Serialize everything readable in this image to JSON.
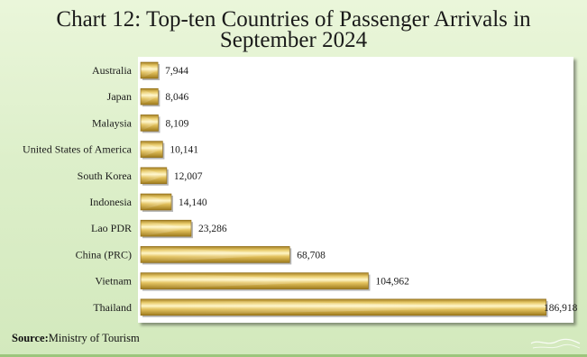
{
  "title": {
    "line1": "Chart 12: Top-ten Countries of Passenger Arrivals in",
    "line2": "September 2024"
  },
  "source": {
    "label": "Source:",
    "text": "Ministry  of Tourism"
  },
  "colors": {
    "bar_highlight": "#fff6c6",
    "bar_light": "#e9cc6c",
    "bar_dark": "#9e7a1c",
    "background": "#dcefca",
    "plot_background": "#ffffff"
  },
  "chart_data": {
    "type": "bar",
    "orientation": "horizontal",
    "title": "Chart 12: Top-ten Countries of Passenger Arrivals in September 2024",
    "xlabel": "",
    "ylabel": "",
    "grid": false,
    "legend": "none",
    "categories": [
      "Australia",
      "Japan",
      "Malaysia",
      "United States of America",
      "South Korea",
      "Indonesia",
      "Lao PDR",
      "China (PRC)",
      "Vietnam",
      "Thailand"
    ],
    "values": [
      7944,
      8046,
      8109,
      10141,
      12007,
      14140,
      23286,
      68708,
      104962,
      186918
    ],
    "value_labels": [
      "7,944",
      "8,046",
      "8,109",
      "10,141",
      "12,007",
      "14,140",
      "23,286",
      "68,708",
      "104,962",
      "186,918"
    ],
    "xlim": [
      0,
      190000
    ]
  }
}
